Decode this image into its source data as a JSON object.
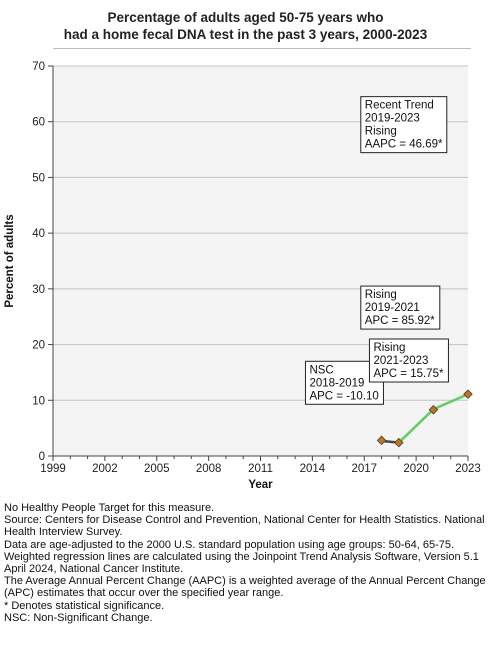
{
  "chart_data": {
    "type": "line",
    "title_lines": [
      "Percentage of adults aged 50-75 years who",
      "had a home fecal DNA test in the past 3 years, 2000-2023"
    ],
    "xlabel": "Year",
    "ylabel": "Percent of adults",
    "xlim": [
      1999,
      2023
    ],
    "ylim": [
      0,
      70
    ],
    "x_ticks": [
      1999,
      2002,
      2005,
      2008,
      2011,
      2014,
      2017,
      2020,
      2023
    ],
    "y_ticks": [
      0,
      10,
      20,
      30,
      40,
      50,
      60,
      70
    ],
    "grid": true,
    "series": [
      {
        "role": "observed",
        "color": "#b5772e",
        "points": [
          {
            "x": 2018,
            "y": 2.8
          },
          {
            "x": 2019,
            "y": 2.4
          },
          {
            "x": 2021,
            "y": 8.3
          },
          {
            "x": 2023,
            "y": 11.1
          }
        ]
      },
      {
        "role": "trend",
        "color": "#4a4a4a",
        "points": [
          {
            "x": 2018,
            "y": 2.7
          },
          {
            "x": 2019,
            "y": 2.4
          }
        ]
      },
      {
        "role": "trend",
        "color": "#66cc66",
        "points": [
          {
            "x": 2019,
            "y": 2.4
          },
          {
            "x": 2021,
            "y": 8.4
          },
          {
            "x": 2023,
            "y": 11.1
          }
        ]
      }
    ],
    "annotations": [
      {
        "lines": [
          "Recent Trend",
          "2019-2023",
          "Rising",
          "AAPC = 46.69*"
        ],
        "x": 2016.8,
        "y": 64.5
      },
      {
        "lines": [
          "Rising",
          "2019-2021",
          "APC = 85.92*"
        ],
        "x": 2016.8,
        "y": 30.5
      },
      {
        "lines": [
          "NSC",
          "2018-2019",
          "APC = -10.10"
        ],
        "x": 2013.6,
        "y": 17.0
      },
      {
        "lines": [
          "Rising",
          "2021-2023",
          "APC = 15.75*"
        ],
        "x": 2017.3,
        "y": 21.0
      }
    ]
  },
  "footnotes": [
    "No Healthy People Target for this measure.",
    "Source: Centers for Disease Control and Prevention, National Center for Health Statistics. National Health Interview Survey.",
    "Data are age-adjusted to the 2000 U.S. standard population using age groups: 50-64, 65-75.",
    "Weighted regression lines are calculated using the Joinpoint Trend Analysis Software, Version 5.1 April 2024, National Cancer Institute.",
    "The Average Annual Percent Change (AAPC) is a weighted average of the Annual Percent Change (APC) estimates that occur over the specified year range.",
    "* Denotes statistical significance.",
    "NSC: Non-Significant Change."
  ]
}
